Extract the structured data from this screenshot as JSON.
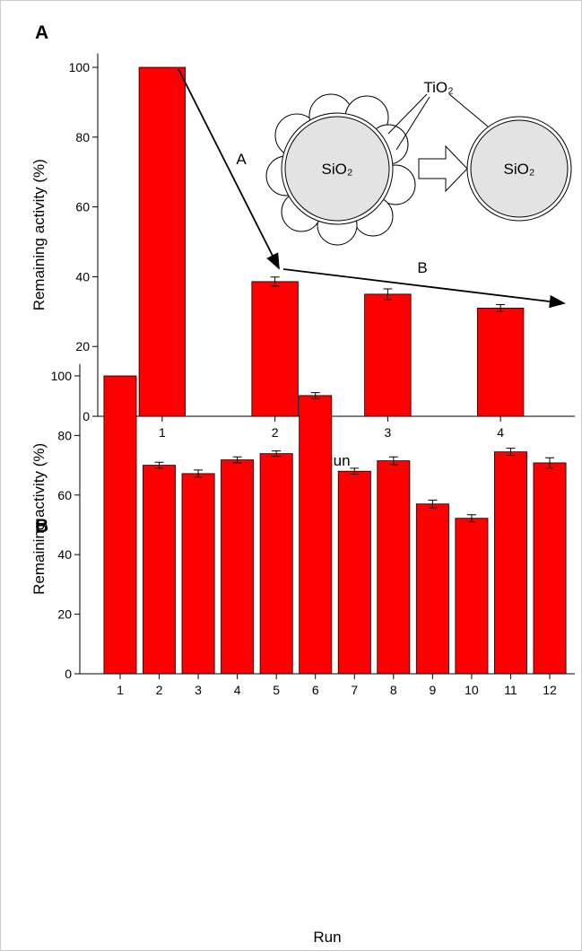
{
  "chart_data": [
    {
      "type": "bar",
      "panel_label": "A",
      "xlabel": "Run",
      "ylabel": "Remaining activity (%)",
      "categories": [
        "1",
        "2",
        "3",
        "4"
      ],
      "values": [
        100,
        38.6,
        35.0,
        31.0
      ],
      "errors": [
        null,
        1.3,
        1.5,
        1.0
      ],
      "color": "#ff0000",
      "ylim": [
        0,
        104
      ],
      "yticks": [
        0,
        20,
        40,
        60,
        80,
        100
      ],
      "annotations": [
        "A",
        "B",
        "TiO₂",
        "SiO₂",
        "SiO₂"
      ]
    },
    {
      "type": "bar",
      "panel_label": "B",
      "xlabel": "Run",
      "ylabel": "Remaining activity (%)",
      "categories": [
        "1",
        "2",
        "3",
        "4",
        "5",
        "6",
        "7",
        "8",
        "9",
        "10",
        "11",
        "12"
      ],
      "values": [
        100,
        70.0,
        67.2,
        71.8,
        73.9,
        93.4,
        68.0,
        71.5,
        57.0,
        52.2,
        74.5,
        70.8
      ],
      "errors": [
        null,
        1.0,
        1.2,
        1.0,
        0.9,
        1.0,
        1.0,
        1.3,
        1.3,
        1.2,
        1.2,
        1.7
      ],
      "color": "#ff0000",
      "ylim": [
        0,
        104
      ],
      "yticks": [
        0,
        20,
        40,
        60,
        80,
        100
      ]
    }
  ]
}
